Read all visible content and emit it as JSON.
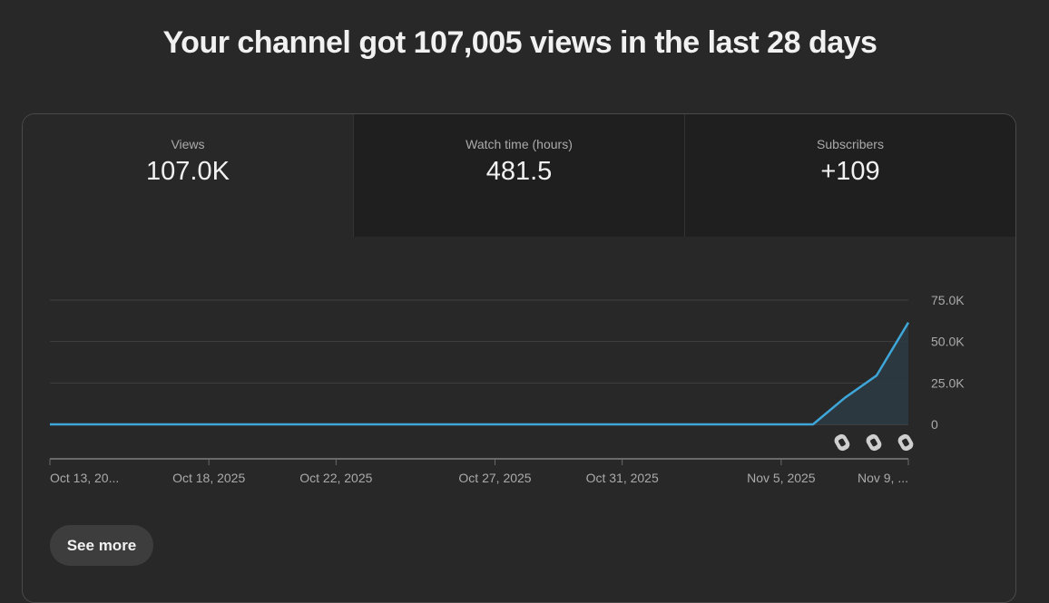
{
  "headline": "Your channel got 107,005 views in the last 28 days",
  "tabs": [
    {
      "label": "Views",
      "value": "107.0K"
    },
    {
      "label": "Watch time (hours)",
      "value": "481.5"
    },
    {
      "label": "Subscribers",
      "value": "+109"
    }
  ],
  "see_more_label": "See more",
  "colors": {
    "line": "#3ea6d8",
    "fill": "#2c3a42",
    "background": "#282828"
  },
  "chart_data": {
    "type": "area",
    "y_ticks": [
      0,
      25000,
      50000,
      75000
    ],
    "y_tick_labels": [
      "0",
      "25.0K",
      "50.0K",
      "75.0K"
    ],
    "ylim": [
      0,
      75000
    ],
    "x_tick_labels": [
      "Oct 13, 20...",
      "Oct 18, 2025",
      "Oct 22, 2025",
      "Oct 27, 2025",
      "Oct 31, 2025",
      "Nov 5, 2025",
      "Nov 9, ..."
    ],
    "x_tick_days": [
      0,
      5,
      9,
      14,
      18,
      23,
      27
    ],
    "xlim_days": [
      0,
      27
    ],
    "series": [
      {
        "x": [
          "Oct 13, 2025",
          "Oct 14, 2025",
          "Oct 15, 2025",
          "Oct 16, 2025",
          "Oct 17, 2025",
          "Oct 18, 2025",
          "Oct 19, 2025",
          "Oct 20, 2025",
          "Oct 21, 2025",
          "Oct 22, 2025",
          "Oct 23, 2025",
          "Oct 24, 2025",
          "Oct 25, 2025",
          "Oct 26, 2025",
          "Oct 27, 2025",
          "Oct 28, 2025",
          "Oct 29, 2025",
          "Oct 30, 2025",
          "Oct 31, 2025",
          "Nov 1, 2025",
          "Nov 2, 2025",
          "Nov 3, 2025",
          "Nov 4, 2025",
          "Nov 5, 2025",
          "Nov 6, 2025",
          "Nov 7, 2025",
          "Nov 8, 2025",
          "Nov 9, 2025"
        ],
        "values": [
          0,
          0,
          0,
          0,
          0,
          0,
          0,
          0,
          0,
          0,
          0,
          0,
          0,
          0,
          0,
          0,
          0,
          0,
          0,
          0,
          0,
          0,
          0,
          0,
          0,
          16000,
          29500,
          61500
        ]
      }
    ],
    "markers": {
      "icon": "shorts-icon",
      "days": [
        25,
        26,
        27
      ]
    },
    "grid": true
  }
}
